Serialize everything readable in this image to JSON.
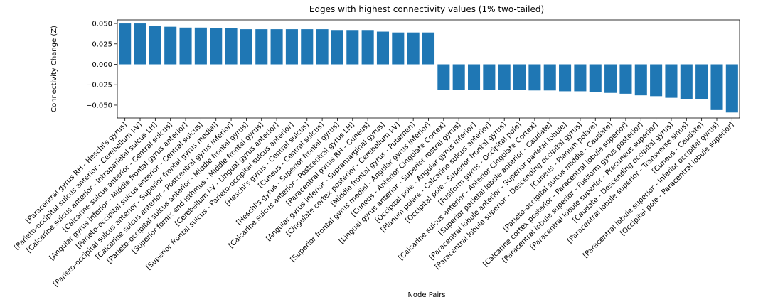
{
  "chart_data": {
    "type": "bar",
    "title": "Edges with highest connectivity values (1% two-tailed)",
    "x_label": "Node Pairs",
    "y_label": "Connectivity Change (Z)",
    "color": "#1f77b4",
    "categories": [
      "[Paracentral gyrus RH - Heschl's gyrus]",
      "[Parieto-occipital sulcus anterior - Cerebellum I-V]",
      "[Calcarine sulcus anterior - Intraparietal sulcus LH]",
      "[Calcarine sulcus anterior - Central sulcus]",
      "[Angular gyrus inferior - Middle frontal gyrus anterior]",
      "[Parieto-occipital sulcus anterior - Central sulcus]",
      "[Parieto-occipital sulcus anterior - Superior frontal gyrus medial]",
      "[Calcarine sulcus anterior - Postcentral gyrus inferior]",
      "[Parieto-occipital sulcus anterior - Middle frontal gyrus]",
      "[Superior fornix and isthmus - Middle frontal gyrus]",
      "[Cerebellum I-V - Lingual gyrus anterior]",
      "[Superior frontal sulcus - Parieto-occipital sulcus anterior]",
      "[Heschl's gyrus - Central sulcus]",
      "[Cuneus - Central sulcus]",
      "[Heschl's gyrus - Superior frontal gyrus]",
      "[Calcarine sulcus anterior - Postcentral gyrus LH]",
      "[Paracentral gyrus RH - Cuneus]",
      "[Angular gyrus inferior - Supramarginal gyrus]",
      "[Cingulate cortex posterior - Cerebellum I-V]",
      "[Middle frontal gyrus - Putamen]",
      "[Superior frontal gyrus medial - Angular gyrus inferior]",
      "[Cuneus - Anterior Cingulate Cortex]",
      "[Lingual gyrus anterior - Superior rostral gyrus]",
      "[Occipital pole - Angular gyrus inferior]",
      "[Planum polare - Calcarine sulcus anterior]",
      "[Occipital pole - Superior frontal gyrus]",
      "[Fusiform gyrus - Occipital pole]",
      "[Calcarine sulcus anterior - Anterior Cingulate Cortex]",
      "[Superior parietal lobule anterior - Caudate]",
      "[Paracentral lobule anterior - Superior parietal lobule]",
      "[Paracentral lobule superior - Descending occipital gyrus]",
      "[Cuneus - Planum polare]",
      "[Parieto-occipital sulcus middle - Caudate]",
      "[Calcarine cortex posterior - Paracentral lobule superior]",
      "[Paracentral lobule superior - Fusiform gyrus posterior]",
      "[Paracentral lobule superior - Precuneus superior]",
      "[Caudate - Descending occipital gyrus]",
      "[Paracentral lobule superior - Transverse sinus]",
      "[Cuneus - Caudate]",
      "[Paracentral lobule superior - Inferior occipital gyrus]",
      "[Occipital pole - Paracentral lobule superior]"
    ],
    "values": [
      0.05,
      0.05,
      0.047,
      0.046,
      0.045,
      0.045,
      0.044,
      0.044,
      0.043,
      0.043,
      0.043,
      0.043,
      0.043,
      0.043,
      0.042,
      0.042,
      0.042,
      0.04,
      0.039,
      0.039,
      0.039,
      -0.031,
      -0.031,
      -0.031,
      -0.031,
      -0.031,
      -0.031,
      -0.032,
      -0.032,
      -0.033,
      -0.033,
      -0.034,
      -0.035,
      -0.036,
      -0.038,
      -0.039,
      -0.041,
      -0.043,
      -0.043,
      -0.056,
      -0.059
    ],
    "ylim": [
      -0.0657,
      0.0544
    ],
    "yticks": [
      {
        "value": 0.05,
        "label": "0.050"
      },
      {
        "value": 0.025,
        "label": "0.025"
      },
      {
        "value": 0,
        "label": "0.000"
      },
      {
        "value": -0.025,
        "label": "−0.025"
      },
      {
        "value": -0.05,
        "label": "−0.050"
      }
    ],
    "grid": false
  }
}
